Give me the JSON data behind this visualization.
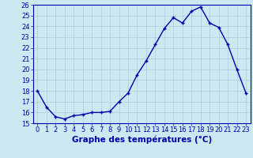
{
  "hours": [
    0,
    1,
    2,
    3,
    4,
    5,
    6,
    7,
    8,
    9,
    10,
    11,
    12,
    13,
    14,
    15,
    16,
    17,
    18,
    19,
    20,
    21,
    22,
    23
  ],
  "temperatures": [
    18.0,
    16.5,
    15.6,
    15.4,
    15.7,
    15.8,
    16.0,
    16.0,
    16.1,
    17.0,
    17.8,
    19.5,
    20.8,
    22.3,
    23.8,
    24.8,
    24.3,
    25.4,
    25.8,
    24.3,
    23.9,
    22.3,
    20.0,
    17.8
  ],
  "line_color": "#0000aa",
  "marker": "+",
  "bg_color": "#cce8f0",
  "grid_color": "#aaccdd",
  "xlabel": "Graphe des températures (°C)",
  "xlim": [
    -0.5,
    23.5
  ],
  "ylim": [
    15,
    26
  ],
  "yticks": [
    15,
    16,
    17,
    18,
    19,
    20,
    21,
    22,
    23,
    24,
    25,
    26
  ],
  "xticks": [
    0,
    1,
    2,
    3,
    4,
    5,
    6,
    7,
    8,
    9,
    10,
    11,
    12,
    13,
    14,
    15,
    16,
    17,
    18,
    19,
    20,
    21,
    22,
    23
  ],
  "axis_color": "#0000aa",
  "tick_fontsize": 6,
  "xlabel_fontsize": 7.5,
  "linewidth": 1.0,
  "markersize": 3,
  "markeredgewidth": 1.0
}
